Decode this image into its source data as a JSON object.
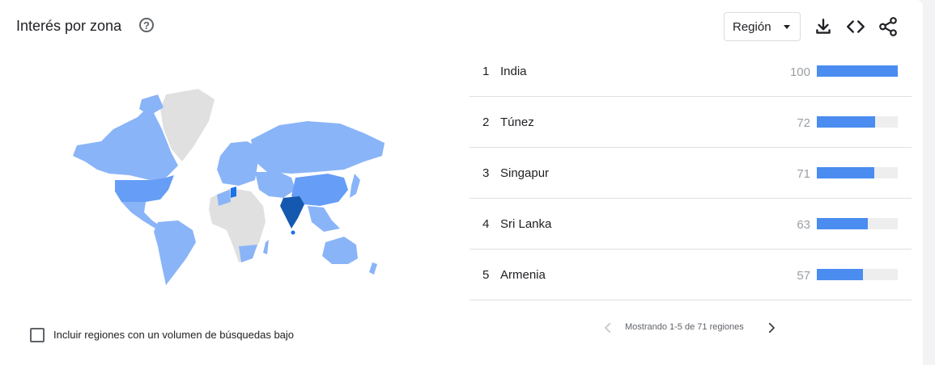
{
  "header": {
    "title": "Interés por zona",
    "help_glyph": "?",
    "region_select": {
      "value": "Región"
    }
  },
  "toolbar": {
    "icons": [
      "download-icon",
      "embed-code-icon",
      "share-icon"
    ]
  },
  "colors": {
    "bar": "#4a8cf0",
    "bar_track": "#eeeeee",
    "map_none": "#e0e0e0",
    "map_low": "#8ab4f8",
    "map_mid": "#669df6",
    "map_high": "#1a73e8",
    "map_top": "#1558b0"
  },
  "ranking": [
    {
      "rank": "1",
      "name": "India",
      "value": 100
    },
    {
      "rank": "2",
      "name": "Túnez",
      "value": 72
    },
    {
      "rank": "3",
      "name": "Singapur",
      "value": 71
    },
    {
      "rank": "4",
      "name": "Sri Lanka",
      "value": 63
    },
    {
      "rank": "5",
      "name": "Armenia",
      "value": 57
    }
  ],
  "pagination": {
    "label": "Mostrando 1-5 de 71 regiones"
  },
  "low_volume": {
    "label": "Incluir regiones con un volumen de búsquedas bajo",
    "checked": false
  }
}
